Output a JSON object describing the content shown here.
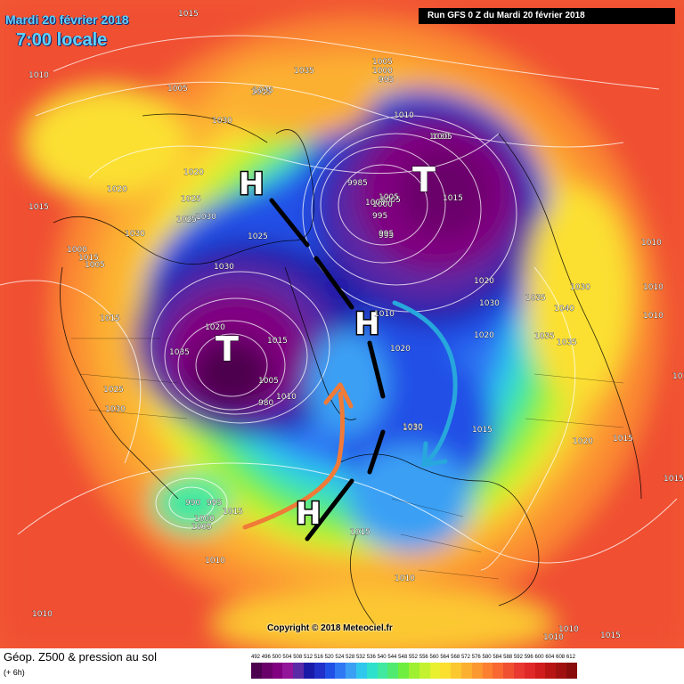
{
  "header": {
    "date": "Mardi 20 février 2018",
    "local_time": "7:00 locale",
    "run": "Run GFS 0 Z du Mardi 20 février 2018"
  },
  "copyright": "Copyright © 2018 Meteociel.fr",
  "footer": {
    "title": "Géop. Z500 & pression au sol",
    "subtitle": "(+ 6h)"
  },
  "legend": {
    "values": [
      "492",
      "496",
      "500",
      "504",
      "508",
      "512",
      "516",
      "520",
      "524",
      "528",
      "532",
      "536",
      "540",
      "544",
      "548",
      "552",
      "556",
      "560",
      "564",
      "568",
      "572",
      "576",
      "580",
      "584",
      "588",
      "592",
      "596",
      "600",
      "604",
      "608",
      "612"
    ],
    "colors": [
      "#4d004d",
      "#6a006a",
      "#800080",
      "#93159a",
      "#5b2aa6",
      "#1a1aa8",
      "#2030c8",
      "#2050e6",
      "#2f78f4",
      "#3aa0f4",
      "#2fc8ec",
      "#2fe0cc",
      "#40e8a0",
      "#50ea70",
      "#70ee40",
      "#9ef030",
      "#c4f230",
      "#e8f030",
      "#fbe030",
      "#fcc830",
      "#fcb030",
      "#fc9830",
      "#fc8030",
      "#f86830",
      "#f05030",
      "#e83830",
      "#e02828",
      "#d01c1c",
      "#b81414",
      "#a01010",
      "#880c0c"
    ]
  },
  "symbols": {
    "high": "H",
    "low": "T"
  },
  "isobar_labels": [
    "1015",
    "1005",
    "1000",
    "995",
    "1010",
    "1005",
    "1015",
    "1035",
    "1035",
    "1030",
    "1020",
    "1020",
    "1025",
    "1030",
    "1025",
    "1015",
    "1030",
    "1015",
    "1000",
    "1005",
    "1015",
    "1025",
    "1030",
    "1010",
    "1030",
    "1020",
    "1005",
    "1030",
    "1020",
    "1035",
    "995",
    "1010",
    "1015",
    "1005",
    "1000",
    "995",
    "980",
    "1035",
    "1030",
    "1020",
    "1015",
    "1005",
    "1010",
    "1030",
    "1025",
    "1020",
    "1040",
    "1035",
    "1030",
    "1010",
    "1010",
    "1010",
    "1035",
    "1015",
    "1020",
    "1015",
    "1015",
    "990",
    "995",
    "1000",
    "1005",
    "1015",
    "1015",
    "1010",
    "1010",
    "1010",
    "1015",
    "1010",
    "1010",
    "9985",
    "1005",
    "1000",
    "995",
    "1015",
    "1030"
  ],
  "arrows": [
    "warm-advection-arrow",
    "cold-advection-arrow"
  ]
}
